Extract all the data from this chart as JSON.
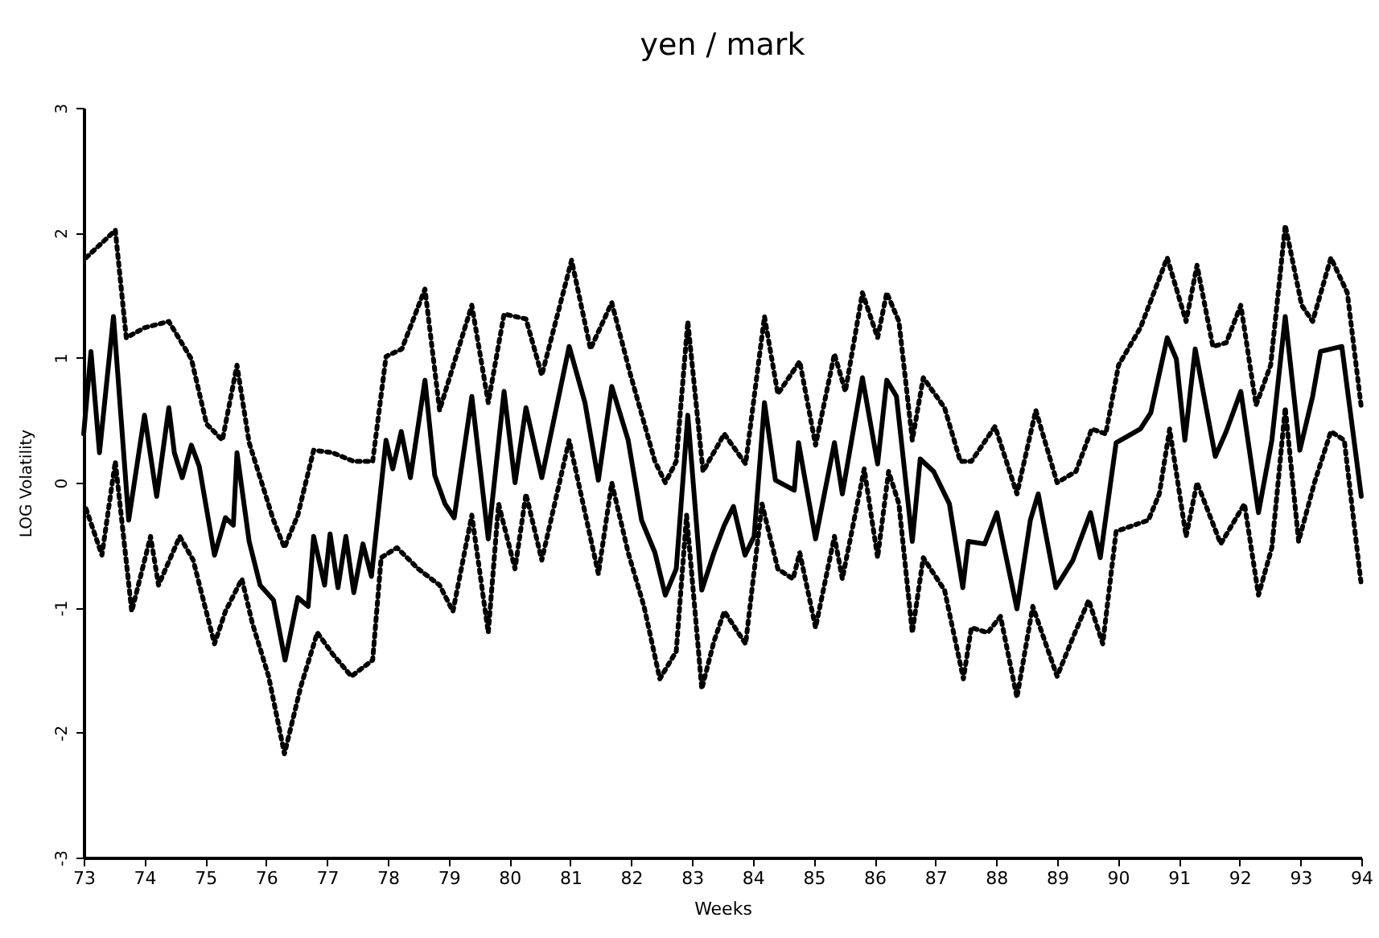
{
  "chart_data": {
    "type": "line",
    "title": "yen / mark",
    "xlabel": "Weeks",
    "ylabel": "LOG Volatility",
    "xlim": [
      73,
      94
    ],
    "xticks": [
      73,
      74,
      75,
      76,
      77,
      78,
      79,
      80,
      81,
      82,
      83,
      84,
      85,
      86,
      87,
      88,
      89,
      90,
      91,
      92,
      93,
      94
    ],
    "ylim": [
      -3,
      3
    ],
    "yticks": [
      -3,
      -2,
      -1,
      0,
      1,
      2,
      3
    ],
    "grid": false,
    "marker": "none",
    "series": [
      {
        "color": "#000000",
        "line_style": "solid",
        "x": [
          73.0,
          73.12,
          73.26,
          73.49,
          73.74,
          74.0,
          74.2,
          74.4,
          74.49,
          74.62,
          74.77,
          74.9,
          75.15,
          75.33,
          75.46,
          75.52,
          75.72,
          75.9,
          76.12,
          76.31,
          76.52,
          76.69,
          76.78,
          76.96,
          77.05,
          77.18,
          77.31,
          77.44,
          77.59,
          77.73,
          77.97,
          78.08,
          78.22,
          78.37,
          78.61,
          78.77,
          78.94,
          79.09,
          79.38,
          79.65,
          79.91,
          80.09,
          80.27,
          80.53,
          80.98,
          81.24,
          81.46,
          81.68,
          81.95,
          82.17,
          82.39,
          82.56,
          82.74,
          82.93,
          83.16,
          83.36,
          83.53,
          83.68,
          83.87,
          84.02,
          84.19,
          84.37,
          84.68,
          84.75,
          85.03,
          85.34,
          85.47,
          85.8,
          86.05,
          86.2,
          86.36,
          86.62,
          86.75,
          86.97,
          87.23,
          87.45,
          87.54,
          87.81,
          88.01,
          88.34,
          88.56,
          88.69,
          88.98,
          89.26,
          89.55,
          89.71,
          89.97,
          90.37,
          90.54,
          90.81,
          90.96,
          91.1,
          91.27,
          91.6,
          91.78,
          92.02,
          92.31,
          92.53,
          92.75,
          92.99,
          93.2,
          93.33,
          93.68,
          94.0
        ],
        "values": [
          0.39,
          1.05,
          0.24,
          1.33,
          -0.3,
          0.54,
          -0.11,
          0.6,
          0.24,
          0.04,
          0.3,
          0.13,
          -0.58,
          -0.28,
          -0.34,
          0.24,
          -0.47,
          -0.82,
          -0.94,
          -1.42,
          -0.92,
          -0.99,
          -0.43,
          -0.82,
          -0.41,
          -0.84,
          -0.43,
          -0.88,
          -0.49,
          -0.75,
          0.34,
          0.11,
          0.41,
          0.04,
          0.82,
          0.06,
          -0.17,
          -0.28,
          0.69,
          -0.45,
          0.73,
          0.0,
          0.6,
          0.04,
          1.09,
          0.64,
          0.02,
          0.77,
          0.34,
          -0.3,
          -0.56,
          -0.9,
          -0.69,
          0.54,
          -0.86,
          -0.56,
          -0.34,
          -0.19,
          -0.58,
          -0.43,
          0.64,
          0.02,
          -0.06,
          0.32,
          -0.45,
          0.32,
          -0.09,
          0.84,
          0.15,
          0.82,
          0.69,
          -0.47,
          0.19,
          0.09,
          -0.17,
          -0.84,
          -0.47,
          -0.49,
          -0.24,
          -1.01,
          -0.3,
          -0.09,
          -0.84,
          -0.62,
          -0.24,
          -0.6,
          0.32,
          0.43,
          0.56,
          1.16,
          0.99,
          0.34,
          1.07,
          0.21,
          0.41,
          0.73,
          -0.24,
          0.34,
          1.33,
          0.26,
          0.69,
          1.05,
          1.09,
          -0.11
        ]
      },
      {
        "color": "#000000",
        "line_style": "dotted",
        "x": [
          73.04,
          73.52,
          73.7,
          74.0,
          74.4,
          74.77,
          75.02,
          75.28,
          75.52,
          75.72,
          76.12,
          76.3,
          76.52,
          76.78,
          77.09,
          77.44,
          77.75,
          77.97,
          78.23,
          78.61,
          78.85,
          79.38,
          79.65,
          79.91,
          80.27,
          80.53,
          81.02,
          81.33,
          81.68,
          81.99,
          82.39,
          82.56,
          82.74,
          82.93,
          83.18,
          83.53,
          83.88,
          84.19,
          84.41,
          84.77,
          85.03,
          85.34,
          85.52,
          85.8,
          86.05,
          86.2,
          86.4,
          86.62,
          86.8,
          87.15,
          87.41,
          87.59,
          87.98,
          88.34,
          88.65,
          89.0,
          89.31,
          89.57,
          89.8,
          90.01,
          90.37,
          90.81,
          91.12,
          91.3,
          91.56,
          91.78,
          92.02,
          92.27,
          92.51,
          92.75,
          93.02,
          93.2,
          93.5,
          93.77,
          94.0
        ],
        "values": [
          1.8,
          2.02,
          1.16,
          1.24,
          1.29,
          0.99,
          0.47,
          0.34,
          0.94,
          0.32,
          -0.3,
          -0.52,
          -0.26,
          0.26,
          0.24,
          0.17,
          0.17,
          1.01,
          1.07,
          1.55,
          0.58,
          1.42,
          0.64,
          1.35,
          1.31,
          0.86,
          1.78,
          1.07,
          1.44,
          0.86,
          0.17,
          0.0,
          0.17,
          1.29,
          0.09,
          0.39,
          0.15,
          1.33,
          0.71,
          0.97,
          0.3,
          1.03,
          0.73,
          1.52,
          1.16,
          1.52,
          1.29,
          0.34,
          0.84,
          0.6,
          0.17,
          0.17,
          0.45,
          -0.09,
          0.58,
          0.0,
          0.09,
          0.43,
          0.39,
          0.94,
          1.24,
          1.8,
          1.29,
          1.74,
          1.09,
          1.12,
          1.42,
          0.62,
          0.94,
          2.06,
          1.42,
          1.29,
          1.8,
          1.52,
          0.6
        ]
      },
      {
        "color": "#000000",
        "line_style": "dotted",
        "x": [
          73.04,
          73.3,
          73.52,
          73.79,
          74.1,
          74.23,
          74.58,
          74.8,
          75.15,
          75.33,
          75.6,
          75.77,
          76.04,
          76.3,
          76.57,
          76.84,
          77.09,
          77.4,
          77.75,
          77.89,
          78.15,
          78.5,
          78.85,
          79.07,
          79.38,
          79.65,
          79.82,
          80.09,
          80.27,
          80.53,
          80.98,
          81.46,
          81.68,
          81.95,
          82.21,
          82.47,
          82.74,
          82.91,
          83.16,
          83.36,
          83.53,
          83.88,
          84.15,
          84.41,
          84.66,
          84.77,
          85.03,
          85.34,
          85.47,
          85.83,
          86.05,
          86.23,
          86.4,
          86.62,
          86.8,
          87.15,
          87.46,
          87.59,
          87.86,
          88.07,
          88.34,
          88.6,
          89.0,
          89.26,
          89.52,
          89.75,
          89.97,
          90.5,
          90.68,
          90.85,
          91.12,
          91.3,
          91.69,
          92.08,
          92.31,
          92.53,
          92.75,
          92.97,
          93.23,
          93.5,
          93.72,
          94.0
        ],
        "values": [
          -0.21,
          -0.58,
          0.17,
          -1.03,
          -0.43,
          -0.82,
          -0.43,
          -0.62,
          -1.29,
          -1.03,
          -0.77,
          -1.12,
          -1.55,
          -2.17,
          -1.63,
          -1.2,
          -1.37,
          -1.55,
          -1.42,
          -0.6,
          -0.52,
          -0.69,
          -0.82,
          -1.03,
          -0.26,
          -1.2,
          -0.17,
          -0.69,
          -0.09,
          -0.62,
          0.34,
          -0.73,
          0.0,
          -0.56,
          -0.99,
          -1.57,
          -1.35,
          -0.26,
          -1.65,
          -1.27,
          -1.03,
          -1.29,
          -0.17,
          -0.69,
          -0.77,
          -0.56,
          -1.16,
          -0.43,
          -0.77,
          0.11,
          -0.6,
          0.09,
          -0.17,
          -1.2,
          -0.6,
          -0.86,
          -1.57,
          -1.16,
          -1.2,
          -1.07,
          -1.72,
          -0.99,
          -1.55,
          -1.24,
          -0.94,
          -1.29,
          -0.39,
          -0.3,
          -0.09,
          0.43,
          -0.43,
          0.0,
          -0.49,
          -0.17,
          -0.9,
          -0.52,
          0.6,
          -0.47,
          0.0,
          0.41,
          0.34,
          -0.82
        ]
      }
    ]
  }
}
